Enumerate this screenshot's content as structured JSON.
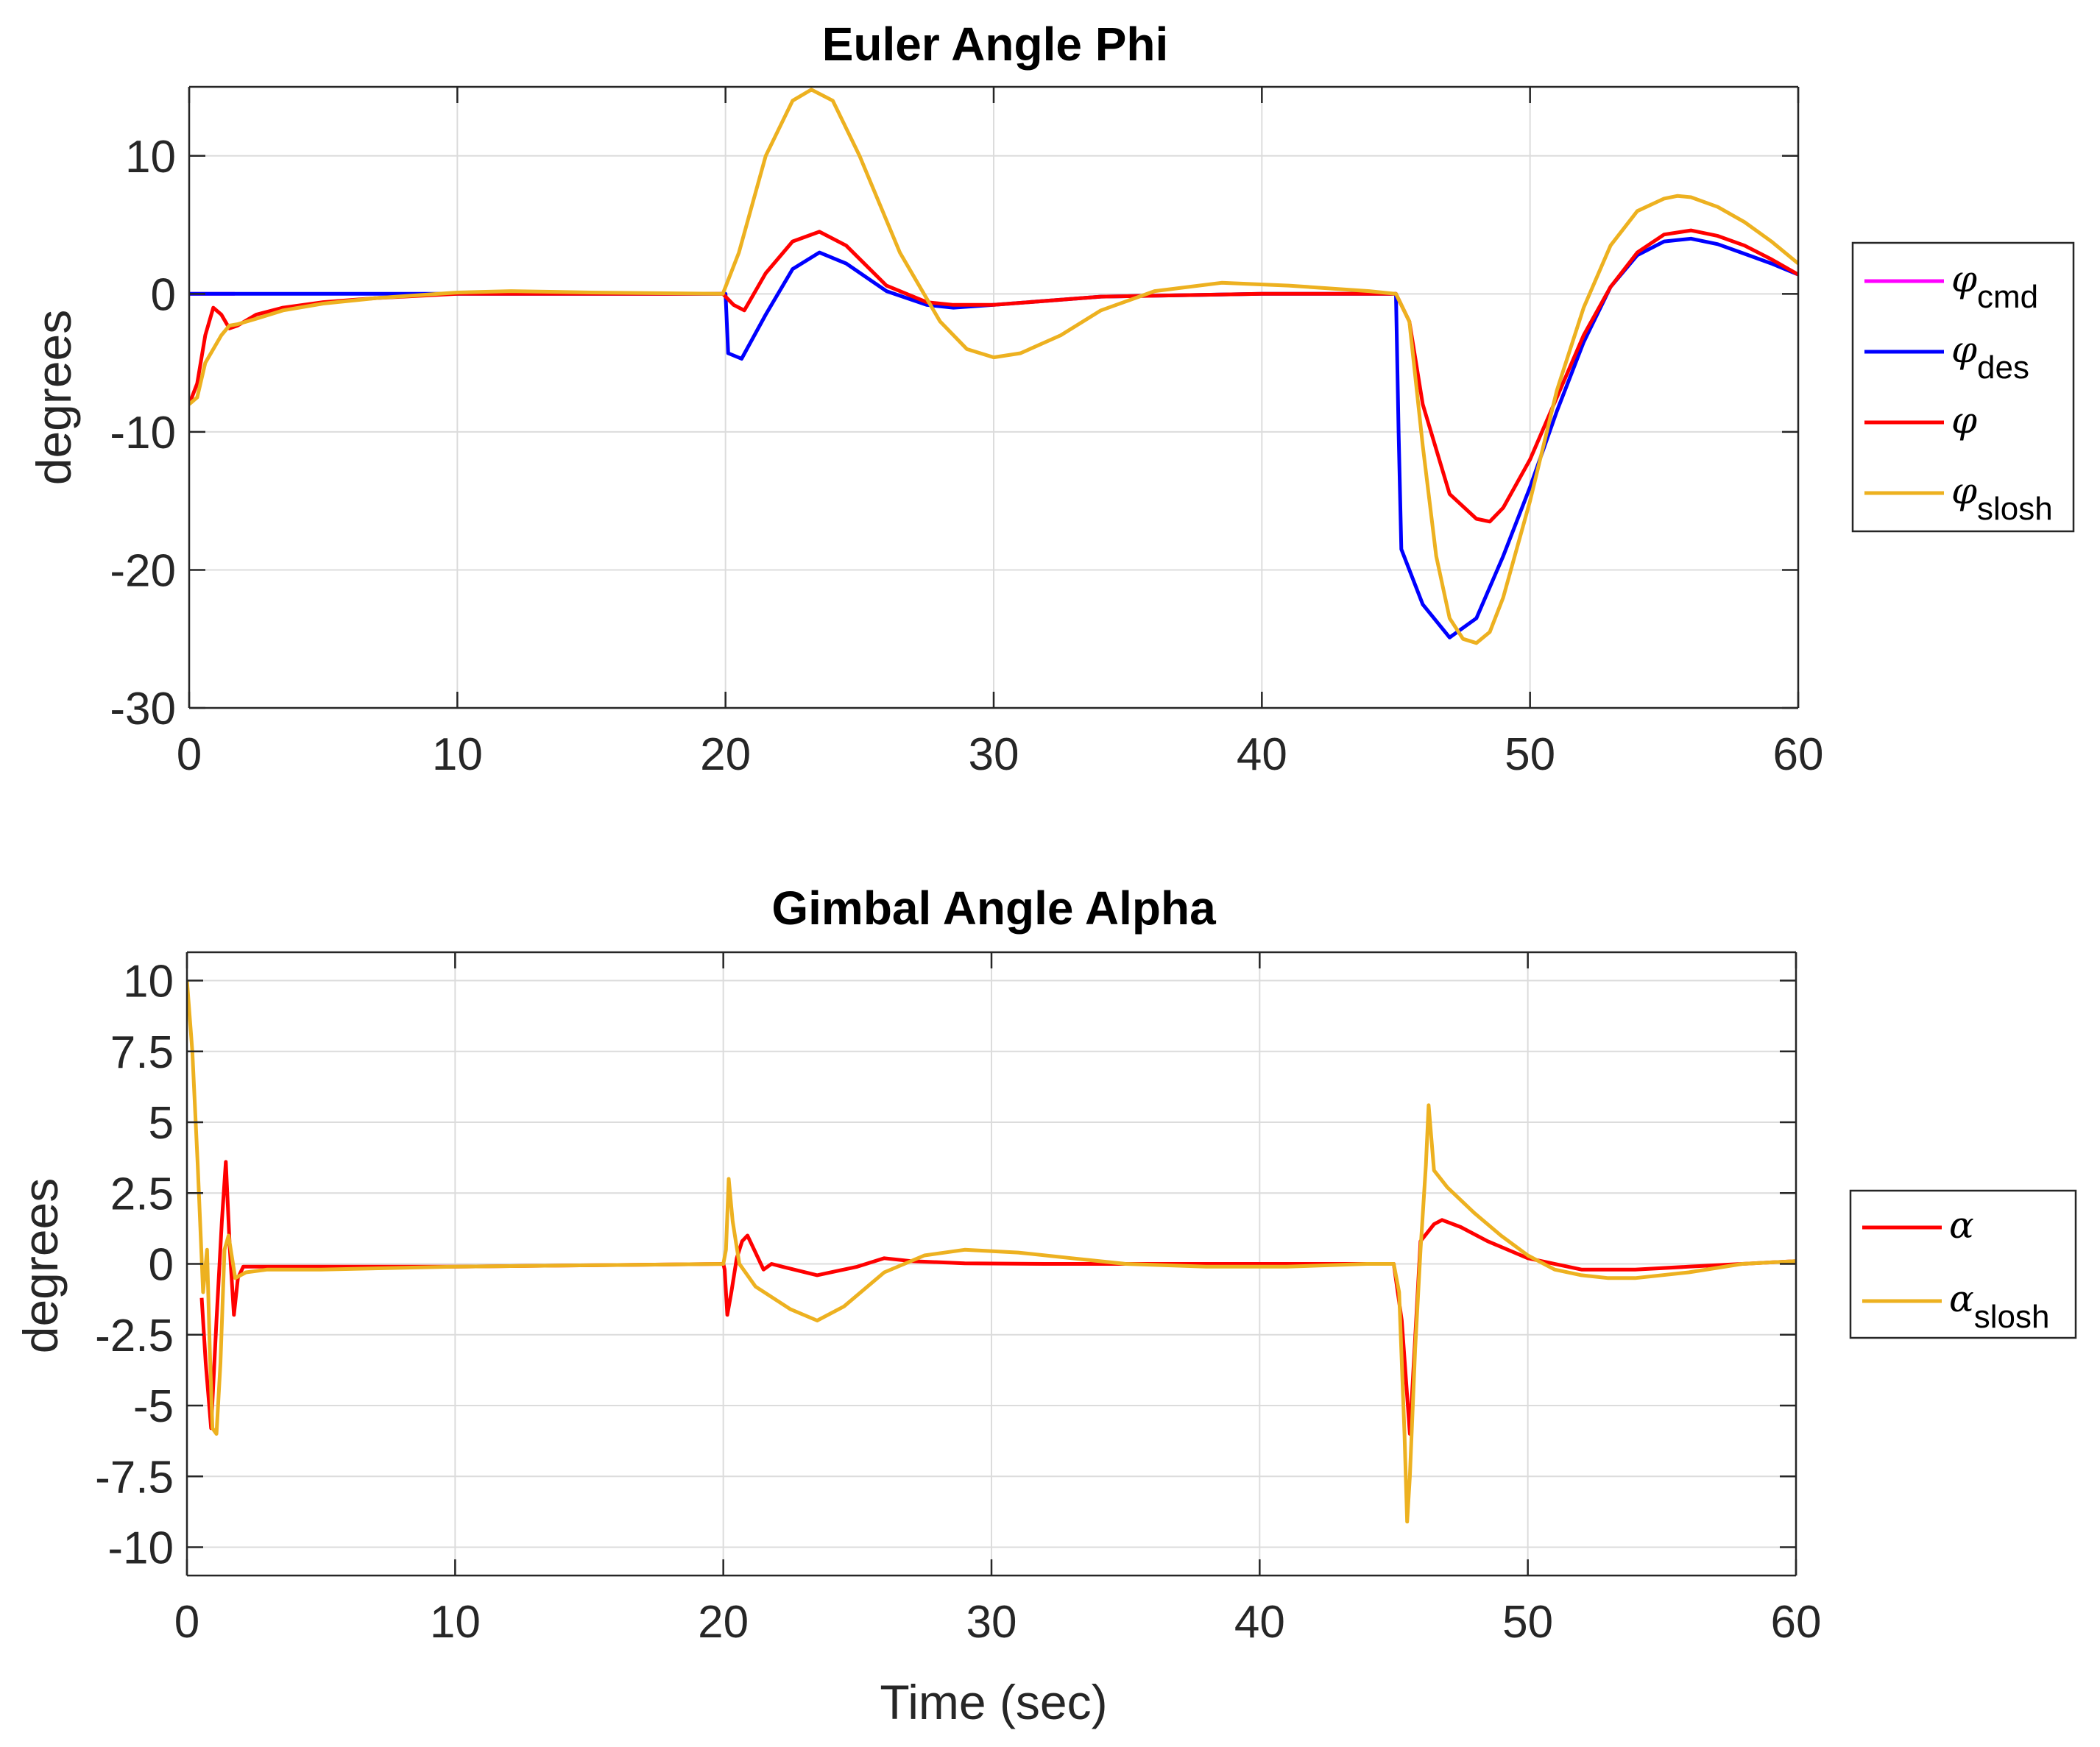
{
  "figure": {
    "xlabel": "Time (sec)"
  },
  "chart_data": [
    {
      "type": "line",
      "title": "Euler Angle Phi",
      "xlabel": "",
      "ylabel": "degrees",
      "xlim": [
        0,
        60
      ],
      "ylim": [
        -30,
        15
      ],
      "xticks": [
        0,
        10,
        20,
        30,
        40,
        50,
        60
      ],
      "yticks": [
        -30,
        -20,
        -10,
        0,
        10
      ],
      "ytick_labels": [
        "-30",
        "-20",
        "-10",
        "0",
        "10"
      ],
      "grid": true,
      "legend_position": "outside-right",
      "series": [
        {
          "name": "φ",
          "sub": "cmd",
          "color": "#ff00ff",
          "x": [
            0,
            1.7
          ],
          "y": [
            0,
            0
          ]
        },
        {
          "name": "φ",
          "sub": "des",
          "color": "#0000ff",
          "x": [
            0,
            1.7,
            5,
            10,
            19.9,
            20,
            20.1,
            20.6,
            21.5,
            22.5,
            23.5,
            24.5,
            26,
            27.5,
            28.5,
            30,
            34,
            40,
            45,
            45.1,
            45.2,
            46,
            47,
            48,
            49,
            50,
            51,
            52,
            53,
            54,
            55,
            56,
            57,
            58,
            59,
            60
          ],
          "y": [
            0,
            0,
            0,
            0,
            0,
            0,
            -4.3,
            -4.7,
            -1.5,
            1.8,
            3.0,
            2.2,
            0.2,
            -0.8,
            -1.0,
            -0.8,
            -0.2,
            0,
            0,
            -10,
            -18.5,
            -22.5,
            -24.9,
            -23.5,
            -19.0,
            -14.0,
            -8.5,
            -3.5,
            0.5,
            2.8,
            3.8,
            4.0,
            3.6,
            2.9,
            2.2,
            1.4
          ]
        },
        {
          "name": "φ",
          "sub": "",
          "color": "#ff0000",
          "x": [
            0,
            0.3,
            0.6,
            0.9,
            1.2,
            1.5,
            1.8,
            2.5,
            3.5,
            5,
            7,
            10,
            19.9,
            20.3,
            20.7,
            21.5,
            22.5,
            23.5,
            24.5,
            26,
            27.5,
            28.5,
            30,
            34,
            40,
            45,
            45.5,
            46,
            47,
            48,
            48.5,
            49,
            50,
            51,
            52,
            53,
            54,
            55,
            56,
            57,
            58,
            59,
            60
          ],
          "y": [
            -8.0,
            -6.5,
            -3.0,
            -1.0,
            -1.5,
            -2.5,
            -2.3,
            -1.5,
            -1.0,
            -0.6,
            -0.3,
            0,
            0,
            -0.8,
            -1.2,
            1.5,
            3.8,
            4.5,
            3.5,
            0.6,
            -0.6,
            -0.8,
            -0.8,
            -0.2,
            0,
            0,
            -2.0,
            -8.0,
            -14.5,
            -16.3,
            -16.5,
            -15.5,
            -12.0,
            -7.5,
            -3.0,
            0.5,
            3.0,
            4.3,
            4.6,
            4.2,
            3.5,
            2.5,
            1.4
          ]
        },
        {
          "name": "φ",
          "sub": "slosh",
          "color": "#edb120",
          "x": [
            0,
            0.3,
            0.6,
            0.9,
            1.2,
            1.5,
            1.8,
            2.5,
            3.5,
            5,
            7,
            10,
            12,
            15,
            19.9,
            20.5,
            21.5,
            22.5,
            23.2,
            24,
            25,
            26.5,
            28,
            29,
            30,
            31,
            32.5,
            34,
            36,
            38.5,
            41,
            44,
            45,
            45.5,
            46,
            46.5,
            47,
            47.5,
            48,
            48.5,
            49,
            50,
            51,
            52,
            53,
            54,
            55,
            55.5,
            56,
            57,
            58,
            59,
            60
          ],
          "y": [
            -8.0,
            -7.5,
            -5.0,
            -4.0,
            -3.0,
            -2.3,
            -2.2,
            -1.8,
            -1.2,
            -0.7,
            -0.3,
            0.1,
            0.2,
            0.1,
            0,
            3.0,
            10.0,
            14.0,
            14.8,
            14.0,
            10.0,
            3.0,
            -2.0,
            -4.0,
            -4.6,
            -4.3,
            -3.0,
            -1.2,
            0.2,
            0.8,
            0.6,
            0.2,
            0,
            -2.0,
            -11.0,
            -19.0,
            -23.5,
            -25.0,
            -25.3,
            -24.5,
            -22.0,
            -15.0,
            -7.0,
            -1.0,
            3.5,
            6.0,
            6.9,
            7.1,
            7.0,
            6.3,
            5.2,
            3.8,
            2.2
          ]
        }
      ],
      "legend": [
        {
          "symbol": "φ",
          "sub": "cmd",
          "color": "#ff00ff"
        },
        {
          "symbol": "φ",
          "sub": "des",
          "color": "#0000ff"
        },
        {
          "symbol": "φ",
          "sub": "",
          "color": "#ff0000"
        },
        {
          "symbol": "φ",
          "sub": "slosh",
          "color": "#edb120"
        }
      ]
    },
    {
      "type": "line",
      "title": "Gimbal Angle Alpha",
      "xlabel": "Time (sec)",
      "ylabel": "degrees",
      "xlim": [
        0,
        60
      ],
      "ylim": [
        -11,
        11
      ],
      "xticks": [
        0,
        10,
        20,
        30,
        40,
        50,
        60
      ],
      "yticks": [
        -10,
        -7.5,
        -5,
        -2.5,
        0,
        2.5,
        5,
        7.5,
        10
      ],
      "ytick_labels": [
        "-10",
        "-7.5",
        "-5",
        "-2.5",
        "0",
        "2.5",
        "5",
        "7.5",
        "10"
      ],
      "grid": true,
      "legend_position": "outside-right",
      "series": [
        {
          "name": "α",
          "sub": "",
          "color": "#ff0000",
          "x": [
            0.55,
            0.7,
            0.9,
            1.1,
            1.3,
            1.45,
            1.6,
            1.75,
            1.9,
            2.1,
            5,
            10,
            20,
            20.05,
            20.15,
            20.3,
            20.5,
            20.7,
            20.9,
            21.2,
            21.5,
            21.8,
            22.2,
            23.5,
            25,
            26,
            27,
            29,
            32,
            35,
            40,
            45,
            45.3,
            45.6,
            46,
            46.5,
            46.8,
            47.5,
            48.5,
            50,
            52,
            54,
            56,
            58,
            60
          ],
          "y": [
            -1.2,
            -3.5,
            -5.8,
            -2.0,
            1.5,
            3.6,
            0.5,
            -1.8,
            -0.5,
            -0.1,
            -0.1,
            -0.1,
            0,
            -0.2,
            -1.8,
            -1.0,
            0.2,
            0.8,
            1.0,
            0.4,
            -0.2,
            0,
            -0.1,
            -0.4,
            -0.1,
            0.2,
            0.1,
            0.02,
            0,
            0,
            0,
            0,
            -2.0,
            -6.0,
            0.8,
            1.4,
            1.55,
            1.3,
            0.8,
            0.2,
            -0.2,
            -0.2,
            -0.1,
            0,
            0.1
          ]
        },
        {
          "name": "α",
          "sub": "slosh",
          "color": "#edb120",
          "x": [
            0,
            0.2,
            0.4,
            0.6,
            0.75,
            0.85,
            0.95,
            1.1,
            1.25,
            1.4,
            1.55,
            1.8,
            2.2,
            3,
            5,
            10,
            20,
            20.1,
            20.2,
            20.35,
            20.6,
            21.2,
            22.5,
            23.5,
            24.5,
            26,
            27.5,
            29,
            31,
            33,
            35,
            38,
            41,
            44,
            45,
            45.2,
            45.4,
            45.5,
            45.6,
            45.8,
            46,
            46.2,
            46.3,
            46.5,
            47,
            48,
            49,
            50,
            51,
            52,
            53,
            54,
            56,
            58,
            60
          ],
          "y": [
            10,
            7.5,
            3.5,
            -1.0,
            0.5,
            -3.0,
            -5.8,
            -6.0,
            -3.5,
            0.5,
            1.0,
            -0.5,
            -0.3,
            -0.2,
            -0.2,
            -0.1,
            0,
            0.5,
            3.0,
            1.5,
            0,
            -0.8,
            -1.6,
            -2.0,
            -1.5,
            -0.3,
            0.3,
            0.5,
            0.4,
            0.2,
            0,
            -0.1,
            -0.1,
            0,
            0,
            -1.0,
            -6.0,
            -9.1,
            -7.5,
            -3.0,
            0.5,
            3.5,
            5.6,
            3.3,
            2.7,
            1.8,
            1.0,
            0.3,
            -0.2,
            -0.4,
            -0.5,
            -0.5,
            -0.3,
            0,
            0.1
          ]
        }
      ],
      "legend": [
        {
          "symbol": "α",
          "sub": "",
          "color": "#ff0000"
        },
        {
          "symbol": "α",
          "sub": "slosh",
          "color": "#edb120"
        }
      ]
    }
  ]
}
